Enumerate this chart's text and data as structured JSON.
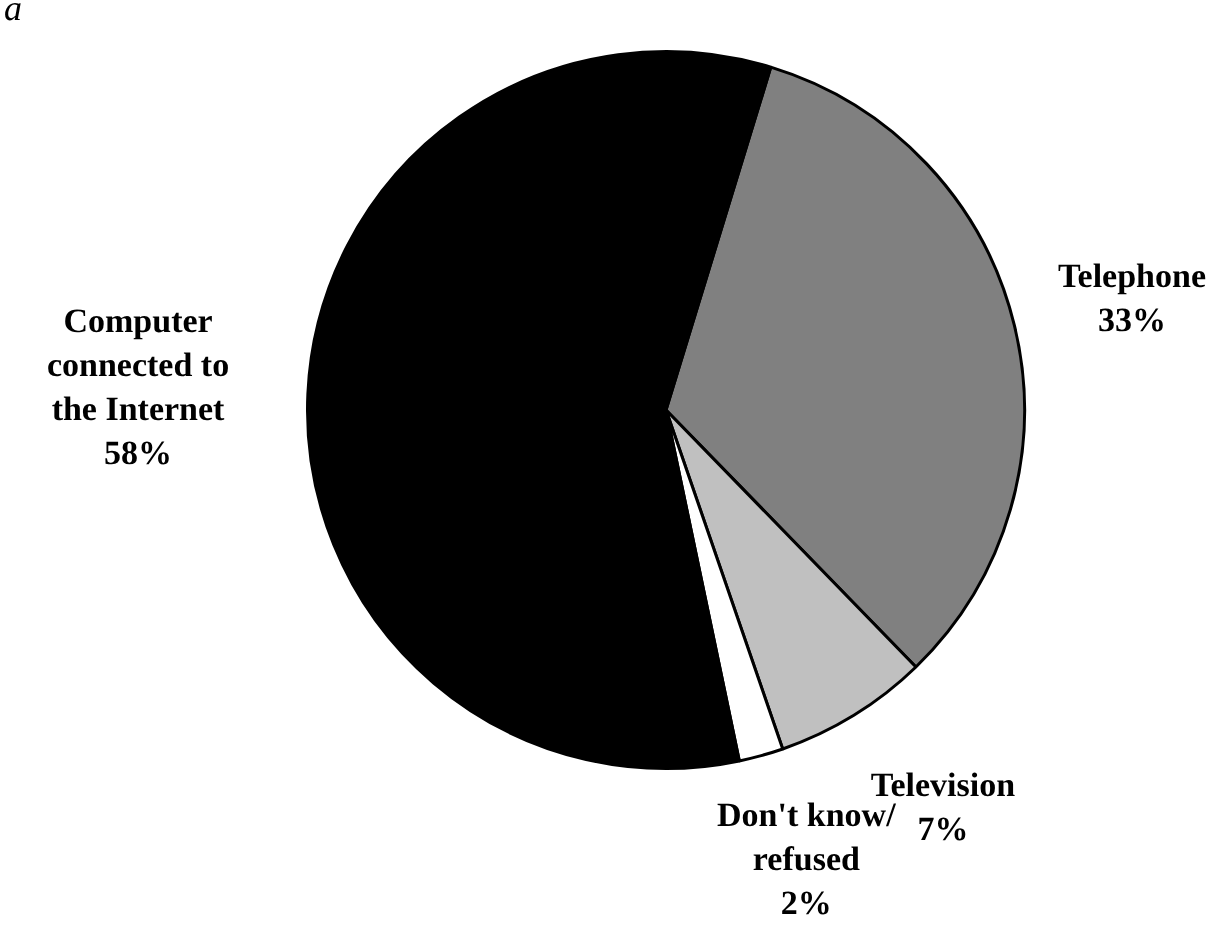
{
  "chart_data": {
    "type": "pie",
    "categories": [
      "Telephone",
      "Television",
      "Don't know/ refused",
      "Computer connected to the Internet"
    ],
    "values": [
      33,
      7,
      2,
      58
    ],
    "value_labels": [
      "33%",
      "7%",
      "2%",
      "58%"
    ],
    "colors": [
      "#808080",
      "#c0c0c0",
      "#ffffff",
      "#000000"
    ],
    "annotations": [
      "a"
    ],
    "legend": false
  }
}
